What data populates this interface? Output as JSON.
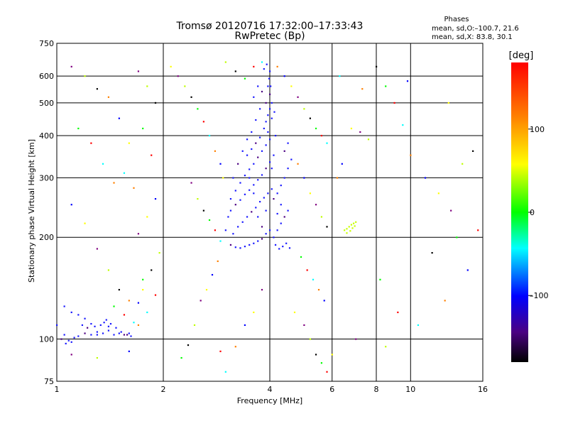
{
  "chart_data": {
    "type": "scatter",
    "title": "Tromsø 20120716 17:32:00–17:33:43",
    "subtitle": "RwPretec (Bp)",
    "phases_header": "Phases",
    "stats_o": "mean, sd,O:–100.7, 21.6",
    "stats_x": "mean, sd,X:  83.8, 30.1",
    "xlabel": "Frequency [MHz]",
    "ylabel": "Stationary phase Virtual Height [km]",
    "x_scale": "log",
    "y_scale": "log",
    "xlim": [
      1,
      16
    ],
    "ylim": [
      75,
      750
    ],
    "x_ticks": [
      1,
      2,
      4,
      6,
      8,
      10,
      16
    ],
    "x_tick_labels": [
      "1",
      "2",
      "4",
      "6",
      "8",
      "10",
      "16"
    ],
    "y_ticks": [
      75,
      100,
      200,
      300,
      400,
      500,
      600,
      750
    ],
    "y_tick_labels": [
      "75",
      "100",
      "200",
      "300",
      "400",
      "500",
      "600",
      "750"
    ],
    "grid": true,
    "colorbar": {
      "label": "[deg]",
      "ticks": [
        100,
        0,
        -100
      ],
      "tick_labels": [
        "100",
        "0",
        "–100"
      ],
      "range": [
        -180,
        180
      ]
    },
    "series": [
      {
        "mode": "O",
        "points": [
          [
            1.03,
            100
          ],
          [
            1.05,
            103
          ],
          [
            1.08,
            99
          ],
          [
            1.1,
            98
          ],
          [
            1.12,
            101
          ],
          [
            1.06,
            97
          ],
          [
            1.15,
            102
          ],
          [
            1.2,
            104
          ],
          [
            1.25,
            103
          ],
          [
            1.3,
            105
          ],
          [
            1.35,
            104
          ],
          [
            1.4,
            106
          ],
          [
            1.45,
            103
          ],
          [
            1.5,
            104
          ],
          [
            1.55,
            103
          ],
          [
            1.6,
            104
          ],
          [
            1.3,
            103
          ],
          [
            1.28,
            109
          ],
          [
            1.33,
            110
          ],
          [
            1.36,
            112
          ],
          [
            1.4,
            109
          ],
          [
            1.22,
            108
          ],
          [
            1.18,
            110
          ],
          [
            1.25,
            111
          ],
          [
            1.42,
            111
          ],
          [
            1.38,
            114
          ],
          [
            1.47,
            108
          ],
          [
            1.52,
            105
          ],
          [
            1.58,
            103
          ],
          [
            1.62,
            102
          ],
          [
            1.2,
            115
          ],
          [
            1.15,
            118
          ],
          [
            1.1,
            120
          ],
          [
            1.05,
            125
          ],
          [
            1.0,
            110
          ],
          [
            3.1,
            190
          ],
          [
            3.2,
            187
          ],
          [
            3.3,
            186
          ],
          [
            3.4,
            188
          ],
          [
            3.5,
            190
          ],
          [
            3.6,
            192
          ],
          [
            3.7,
            195
          ],
          [
            3.8,
            198
          ],
          [
            3.9,
            205
          ],
          [
            4.0,
            210
          ],
          [
            3.15,
            205
          ],
          [
            3.25,
            215
          ],
          [
            3.35,
            222
          ],
          [
            3.45,
            230
          ],
          [
            3.55,
            238
          ],
          [
            3.65,
            245
          ],
          [
            3.75,
            255
          ],
          [
            3.85,
            262
          ],
          [
            3.95,
            270
          ],
          [
            4.05,
            278
          ],
          [
            3.1,
            240
          ],
          [
            3.2,
            250
          ],
          [
            3.3,
            258
          ],
          [
            3.4,
            268
          ],
          [
            3.5,
            276
          ],
          [
            3.6,
            286
          ],
          [
            3.7,
            296
          ],
          [
            3.8,
            306
          ],
          [
            3.9,
            320
          ],
          [
            4.0,
            334
          ],
          [
            3.2,
            275
          ],
          [
            3.3,
            290
          ],
          [
            3.4,
            305
          ],
          [
            3.5,
            318
          ],
          [
            3.6,
            330
          ],
          [
            3.7,
            345
          ],
          [
            3.8,
            360
          ],
          [
            3.9,
            375
          ],
          [
            4.0,
            390
          ],
          [
            3.95,
            410
          ],
          [
            3.45,
            350
          ],
          [
            3.55,
            365
          ],
          [
            3.65,
            380
          ],
          [
            3.75,
            395
          ],
          [
            3.85,
            420
          ],
          [
            3.9,
            440
          ],
          [
            3.95,
            460
          ],
          [
            4.0,
            480
          ],
          [
            4.05,
            500
          ],
          [
            4.0,
            530
          ],
          [
            4.02,
            560
          ],
          [
            3.98,
            590
          ],
          [
            4.0,
            620
          ],
          [
            3.85,
            630
          ],
          [
            3.92,
            650
          ],
          [
            3.7,
            560
          ],
          [
            3.8,
            540
          ],
          [
            3.6,
            520
          ],
          [
            3.75,
            480
          ],
          [
            3.65,
            445
          ],
          [
            4.1,
            200
          ],
          [
            4.2,
            210
          ],
          [
            4.3,
            220
          ],
          [
            4.4,
            230
          ],
          [
            4.5,
            240
          ],
          [
            4.15,
            190
          ],
          [
            4.25,
            185
          ],
          [
            4.35,
            188
          ],
          [
            4.45,
            192
          ],
          [
            4.55,
            186
          ],
          [
            4.1,
            260
          ],
          [
            4.2,
            270
          ],
          [
            4.3,
            285
          ],
          [
            4.4,
            300
          ],
          [
            4.5,
            320
          ],
          [
            4.6,
            340
          ],
          [
            4.5,
            380
          ],
          [
            4.4,
            360
          ],
          [
            4.3,
            250
          ],
          [
            4.2,
            235
          ],
          [
            3.1,
            260
          ],
          [
            3.05,
            230
          ],
          [
            3.0,
            210
          ],
          [
            3.15,
            300
          ],
          [
            3.25,
            330
          ],
          [
            3.35,
            360
          ],
          [
            3.45,
            390
          ],
          [
            3.55,
            410
          ],
          [
            3.5,
            300
          ],
          [
            3.6,
            270
          ],
          [
            3.7,
            230
          ],
          [
            3.8,
            215
          ],
          [
            3.9,
            240
          ],
          [
            4.05,
            320
          ],
          [
            4.1,
            350
          ],
          [
            4.15,
            400
          ],
          [
            4.05,
            450
          ],
          [
            4.12,
            470
          ],
          [
            3.9,
            500
          ],
          [
            3.95,
            560
          ]
        ]
      },
      {
        "mode": "scattered",
        "points": [
          [
            1.4,
            520
          ],
          [
            1.5,
            450
          ],
          [
            1.6,
            380
          ],
          [
            1.7,
            620
          ],
          [
            1.8,
            560
          ],
          [
            1.9,
            500
          ],
          [
            1.75,
            420
          ],
          [
            1.85,
            350
          ],
          [
            1.55,
            310
          ],
          [
            1.65,
            280
          ],
          [
            1.9,
            260
          ],
          [
            1.8,
            230
          ],
          [
            1.7,
            205
          ],
          [
            1.95,
            180
          ],
          [
            1.85,
            160
          ],
          [
            1.75,
            150
          ],
          [
            1.9,
            135
          ],
          [
            1.8,
            120
          ],
          [
            1.7,
            110
          ],
          [
            1.6,
            92
          ],
          [
            2.1,
            640
          ],
          [
            2.2,
            600
          ],
          [
            2.3,
            560
          ],
          [
            2.4,
            520
          ],
          [
            2.5,
            480
          ],
          [
            2.6,
            440
          ],
          [
            2.7,
            400
          ],
          [
            2.8,
            360
          ],
          [
            2.9,
            330
          ],
          [
            2.95,
            300
          ],
          [
            2.4,
            290
          ],
          [
            2.5,
            260
          ],
          [
            2.6,
            240
          ],
          [
            2.7,
            225
          ],
          [
            2.8,
            210
          ],
          [
            2.9,
            195
          ],
          [
            2.85,
            170
          ],
          [
            2.75,
            155
          ],
          [
            2.65,
            140
          ],
          [
            2.55,
            130
          ],
          [
            2.45,
            110
          ],
          [
            2.35,
            96
          ],
          [
            2.25,
            88
          ],
          [
            2.9,
            92
          ],
          [
            3.0,
            80
          ],
          [
            3.2,
            95
          ],
          [
            3.4,
            110
          ],
          [
            3.6,
            120
          ],
          [
            3.8,
            140
          ],
          [
            3.0,
            660
          ],
          [
            3.2,
            620
          ],
          [
            3.4,
            590
          ],
          [
            3.6,
            640
          ],
          [
            3.8,
            660
          ],
          [
            4.2,
            640
          ],
          [
            4.4,
            600
          ],
          [
            4.6,
            560
          ],
          [
            4.8,
            520
          ],
          [
            5.0,
            480
          ],
          [
            5.2,
            450
          ],
          [
            5.4,
            420
          ],
          [
            5.6,
            400
          ],
          [
            5.8,
            380
          ],
          [
            4.8,
            330
          ],
          [
            5.0,
            300
          ],
          [
            5.2,
            270
          ],
          [
            5.4,
            250
          ],
          [
            5.6,
            230
          ],
          [
            5.8,
            215
          ],
          [
            4.9,
            175
          ],
          [
            5.1,
            160
          ],
          [
            5.3,
            150
          ],
          [
            5.5,
            140
          ],
          [
            5.7,
            130
          ],
          [
            4.7,
            120
          ],
          [
            5.0,
            110
          ],
          [
            5.2,
            100
          ],
          [
            5.4,
            90
          ],
          [
            5.6,
            85
          ],
          [
            5.8,
            80
          ],
          [
            6.5,
            210
          ],
          [
            6.6,
            212
          ],
          [
            6.7,
            215
          ],
          [
            6.8,
            218
          ],
          [
            6.9,
            220
          ],
          [
            7.0,
            222
          ],
          [
            6.6,
            206
          ],
          [
            6.75,
            209
          ],
          [
            6.85,
            213
          ],
          [
            6.95,
            216
          ],
          [
            6.2,
            300
          ],
          [
            6.4,
            330
          ],
          [
            6.8,
            420
          ],
          [
            7.2,
            410
          ],
          [
            7.6,
            390
          ],
          [
            8.0,
            640
          ],
          [
            8.5,
            560
          ],
          [
            9.0,
            500
          ],
          [
            9.5,
            430
          ],
          [
            10.0,
            350
          ],
          [
            11,
            300
          ],
          [
            12,
            270
          ],
          [
            13,
            240
          ],
          [
            14,
            330
          ],
          [
            15,
            360
          ],
          [
            8.2,
            150
          ],
          [
            9.2,
            120
          ],
          [
            10.5,
            110
          ],
          [
            12.5,
            130
          ],
          [
            14.5,
            160
          ],
          [
            6.0,
            90
          ],
          [
            7.0,
            100
          ],
          [
            8.5,
            95
          ],
          [
            11.5,
            180
          ],
          [
            13.5,
            200
          ],
          [
            15.5,
            210
          ],
          [
            6.3,
            600
          ],
          [
            7.3,
            550
          ],
          [
            9.8,
            580
          ],
          [
            12.8,
            500
          ],
          [
            1.1,
            640
          ],
          [
            1.2,
            600
          ],
          [
            1.3,
            550
          ],
          [
            1.15,
            420
          ],
          [
            1.25,
            380
          ],
          [
            1.35,
            330
          ],
          [
            1.45,
            290
          ],
          [
            1.1,
            250
          ],
          [
            1.2,
            220
          ],
          [
            1.3,
            185
          ],
          [
            1.4,
            160
          ],
          [
            1.5,
            140
          ],
          [
            1.45,
            125
          ],
          [
            1.55,
            118
          ],
          [
            1.65,
            112
          ],
          [
            1.6,
            130
          ],
          [
            1.7,
            128
          ],
          [
            1.75,
            140
          ],
          [
            1.1,
            90
          ],
          [
            1.3,
            88
          ]
        ]
      }
    ]
  }
}
